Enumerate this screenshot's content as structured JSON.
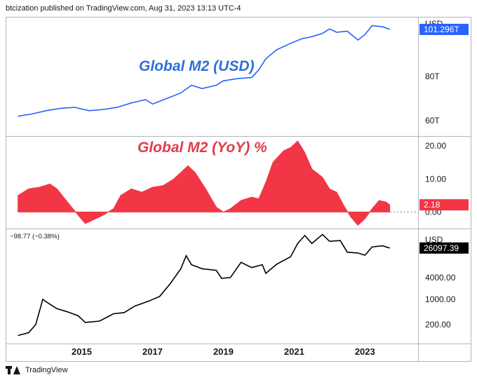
{
  "header": {
    "attribution": "btcization published on TradingView.com, Aug 31, 2023 13:13 UTC-4"
  },
  "footer": {
    "brand": "TradingView",
    "logo_icon": "tradingview-logo-icon"
  },
  "colors": {
    "m2_line": "#2962ff",
    "m2_title": "#2f6fd8",
    "yoy_fill": "#f23645",
    "yoy_title": "#e23a48",
    "btc_line": "#000000",
    "m2_label_bg": "#2962ff",
    "yoy_label_bg": "#f23645",
    "btc_label_bg": "#000000",
    "grid": "#e0e3eb",
    "text": "#131722"
  },
  "chart_data": [
    {
      "type": "line",
      "title": "Global M2 (USD)",
      "axis_unit": "USD",
      "y_ticks": [
        "80T",
        "60T"
      ],
      "y_tick_values": [
        80,
        60
      ],
      "ylim": [
        53,
        107
      ],
      "last_value_label": "101.296T",
      "series": [
        {
          "x": [
            2013.2,
            2013.6,
            2014.0,
            2014.4,
            2014.8,
            2015.2,
            2015.6,
            2016.0,
            2016.4,
            2016.8,
            2017.0,
            2017.4,
            2017.8,
            2018.1,
            2018.4,
            2018.8,
            2019.0,
            2019.4,
            2019.8,
            2020.0,
            2020.2,
            2020.5,
            2020.9,
            2021.2,
            2021.5,
            2021.8,
            2022.0,
            2022.2,
            2022.5,
            2022.8,
            2023.0,
            2023.2,
            2023.5,
            2023.7
          ],
          "values": [
            62.0,
            63.0,
            64.5,
            65.5,
            66.0,
            64.5,
            65.0,
            66.0,
            68.0,
            69.5,
            67.5,
            70.0,
            72.5,
            76.0,
            74.5,
            76.0,
            78.0,
            79.0,
            79.5,
            83.0,
            88.0,
            92.0,
            95.0,
            97.0,
            98.0,
            99.5,
            101.5,
            100.0,
            100.5,
            96.5,
            99.0,
            103.0,
            102.5,
            101.3
          ]
        }
      ]
    },
    {
      "type": "area",
      "title": "Global M2 (YoY) %",
      "y_ticks": [
        "20.00",
        "10.00",
        "0.00"
      ],
      "y_tick_values": [
        20,
        10,
        0
      ],
      "ylim": [
        -5,
        23
      ],
      "last_value_label": "2.18",
      "series": [
        {
          "x": [
            2013.2,
            2013.5,
            2013.8,
            2014.1,
            2014.3,
            2014.6,
            2014.9,
            2015.1,
            2015.3,
            2015.6,
            2015.9,
            2016.1,
            2016.4,
            2016.7,
            2017.0,
            2017.3,
            2017.6,
            2017.9,
            2018.0,
            2018.2,
            2018.5,
            2018.8,
            2019.0,
            2019.2,
            2019.5,
            2019.8,
            2020.0,
            2020.2,
            2020.4,
            2020.7,
            2020.9,
            2021.1,
            2021.3,
            2021.5,
            2021.8,
            2022.0,
            2022.2,
            2022.4,
            2022.6,
            2022.8,
            2023.0,
            2023.2,
            2023.4,
            2023.6,
            2023.7
          ],
          "values": [
            5.0,
            7.0,
            7.5,
            8.5,
            7.0,
            3.0,
            -1.0,
            -3.5,
            -2.5,
            -1.0,
            1.0,
            5.0,
            7.0,
            6.0,
            7.5,
            8.0,
            10.0,
            13.0,
            14.0,
            12.0,
            7.0,
            1.5,
            0.0,
            1.0,
            3.5,
            4.5,
            4.0,
            9.0,
            15.0,
            18.5,
            19.5,
            21.5,
            18.0,
            13.0,
            10.5,
            7.0,
            6.0,
            2.0,
            -1.5,
            -4.0,
            -2.0,
            1.0,
            3.5,
            3.0,
            2.18
          ]
        }
      ]
    },
    {
      "type": "line",
      "scale": "log",
      "axis_unit": "USD",
      "change_readout": "−98.77 (−0.38%)",
      "y_ticks": [
        "4000.00",
        "1000.00",
        "200.00"
      ],
      "y_tick_values": [
        4000,
        1000,
        200
      ],
      "ylim": [
        60,
        90000
      ],
      "last_value_label": "26097.39",
      "x_ticks": [
        "2015",
        "2017",
        "2019",
        "2021",
        "2023"
      ],
      "x_tick_values": [
        2015,
        2017,
        2019,
        2021,
        2023
      ],
      "xlim": [
        2012.85,
        2024.5
      ],
      "series": [
        {
          "x": [
            2013.2,
            2013.5,
            2013.7,
            2013.9,
            2014.0,
            2014.3,
            2014.6,
            2014.9,
            2015.1,
            2015.5,
            2015.9,
            2016.2,
            2016.5,
            2016.9,
            2017.2,
            2017.5,
            2017.8,
            2017.95,
            2018.1,
            2018.4,
            2018.8,
            2018.95,
            2019.2,
            2019.5,
            2019.8,
            2020.1,
            2020.2,
            2020.5,
            2020.9,
            2021.1,
            2021.3,
            2021.5,
            2021.8,
            2022.0,
            2022.3,
            2022.5,
            2022.8,
            2023.0,
            2023.2,
            2023.5,
            2023.7
          ],
          "values": [
            100,
            120,
            200,
            1000,
            850,
            550,
            450,
            350,
            230,
            250,
            400,
            430,
            650,
            900,
            1200,
            2700,
            7000,
            16000,
            9000,
            7000,
            6300,
            3800,
            4000,
            10500,
            7500,
            9000,
            5200,
            9200,
            15000,
            35000,
            58000,
            35000,
            62000,
            40000,
            42000,
            20000,
            19000,
            16500,
            28000,
            30000,
            26097.39
          ]
        }
      ]
    }
  ]
}
